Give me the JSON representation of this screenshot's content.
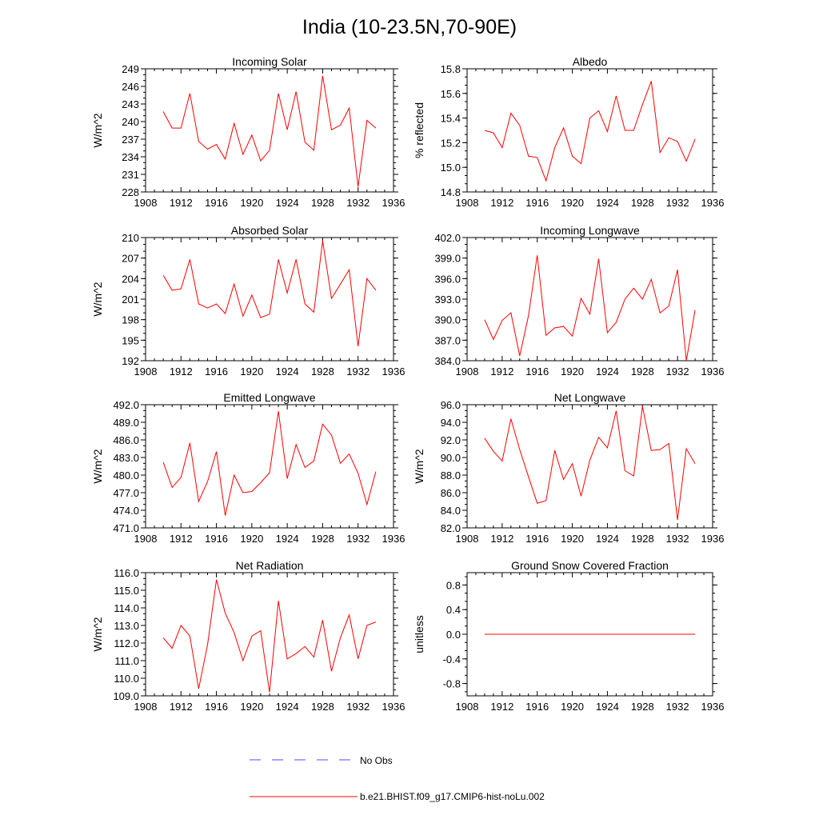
{
  "title": "India (10-23.5N,70-90E)",
  "legend": {
    "entries": [
      {
        "label": "No Obs",
        "color": "#4d4dff",
        "style": "dashed"
      },
      {
        "label": "b.e21.BHIST.f09_g17.CMIP6-hist-noLu.002",
        "color": "#ff0000",
        "style": "solid"
      }
    ]
  },
  "chart_data": [
    {
      "type": "line",
      "title": "Incoming Solar",
      "ylabel": "W/m^2",
      "xlim": [
        1908,
        1936
      ],
      "xticks": [
        "1908",
        "1912",
        "1916",
        "1920",
        "1924",
        "1928",
        "1932",
        "1936"
      ],
      "ylim": [
        228,
        249
      ],
      "yticks": [
        "228",
        "231",
        "234",
        "237",
        "240",
        "243",
        "246",
        "249"
      ],
      "x": [
        1910,
        1911,
        1912,
        1913,
        1914,
        1915,
        1916,
        1917,
        1918,
        1919,
        1920,
        1921,
        1922,
        1923,
        1924,
        1925,
        1926,
        1927,
        1928,
        1929,
        1930,
        1931,
        1932,
        1933,
        1934
      ],
      "series": [
        {
          "color": "#ff0000",
          "values": [
            241.7,
            238.9,
            238.9,
            244.8,
            236.6,
            235.3,
            236.1,
            233.6,
            239.7,
            234.4,
            237.7,
            233.3,
            235.1,
            244.8,
            238.6,
            245.1,
            236.5,
            235.1,
            247.8,
            238.6,
            239.4,
            242.3,
            228.9,
            240.2,
            238.9
          ]
        }
      ]
    },
    {
      "type": "line",
      "title": "Albedo",
      "ylabel": "% reflected",
      "xlim": [
        1908,
        1936
      ],
      "xticks": [
        "1908",
        "1912",
        "1916",
        "1920",
        "1924",
        "1928",
        "1932",
        "1936"
      ],
      "ylim": [
        14.8,
        15.8
      ],
      "yticks": [
        "14.8",
        "15.0",
        "15.2",
        "15.4",
        "15.6",
        "15.8"
      ],
      "x": [
        1910,
        1911,
        1912,
        1913,
        1914,
        1915,
        1916,
        1917,
        1918,
        1919,
        1920,
        1921,
        1922,
        1923,
        1924,
        1925,
        1926,
        1927,
        1928,
        1929,
        1930,
        1931,
        1932,
        1933,
        1934
      ],
      "series": [
        {
          "color": "#ff0000",
          "values": [
            15.3,
            15.28,
            15.16,
            15.44,
            15.34,
            15.09,
            15.08,
            14.89,
            15.16,
            15.32,
            15.09,
            15.03,
            15.4,
            15.46,
            15.29,
            15.58,
            15.3,
            15.3,
            15.51,
            15.7,
            15.12,
            15.24,
            15.21,
            15.05,
            15.23
          ]
        }
      ]
    },
    {
      "type": "line",
      "title": "Absorbed Solar",
      "ylabel": "W/m^2",
      "xlim": [
        1908,
        1936
      ],
      "xticks": [
        "1908",
        "1912",
        "1916",
        "1920",
        "1924",
        "1928",
        "1932",
        "1936"
      ],
      "ylim": [
        192,
        210
      ],
      "yticks": [
        "192",
        "195",
        "198",
        "201",
        "204",
        "207",
        "210"
      ],
      "x": [
        1910,
        1911,
        1912,
        1913,
        1914,
        1915,
        1916,
        1917,
        1918,
        1919,
        1920,
        1921,
        1922,
        1923,
        1924,
        1925,
        1926,
        1927,
        1928,
        1929,
        1930,
        1931,
        1932,
        1933,
        1934
      ],
      "series": [
        {
          "color": "#ff0000",
          "values": [
            204.5,
            202.3,
            202.5,
            206.8,
            200.3,
            199.7,
            200.3,
            198.9,
            203.2,
            198.5,
            201.6,
            198.3,
            198.8,
            206.8,
            201.9,
            206.8,
            200.3,
            199.1,
            209.5,
            201.1,
            203.2,
            205.3,
            194.1,
            204.0,
            202.3
          ]
        }
      ]
    },
    {
      "type": "line",
      "title": "Incoming Longwave",
      "ylabel": "",
      "xlim": [
        1908,
        1936
      ],
      "xticks": [
        "1908",
        "1912",
        "1916",
        "1920",
        "1924",
        "1928",
        "1932",
        "1936"
      ],
      "ylim": [
        384,
        402
      ],
      "yticks": [
        "384.0",
        "387.0",
        "390.0",
        "393.0",
        "396.0",
        "399.0",
        "402.0"
      ],
      "x": [
        1910,
        1911,
        1912,
        1913,
        1914,
        1915,
        1916,
        1917,
        1918,
        1919,
        1920,
        1921,
        1922,
        1923,
        1924,
        1925,
        1926,
        1927,
        1928,
        1929,
        1930,
        1931,
        1932,
        1933,
        1934
      ],
      "series": [
        {
          "color": "#ff0000",
          "values": [
            390.0,
            387.1,
            389.9,
            391.0,
            384.7,
            390.6,
            399.4,
            387.7,
            388.8,
            389.0,
            387.6,
            393.1,
            390.8,
            398.9,
            388.1,
            389.6,
            393.0,
            394.6,
            393.0,
            395.9,
            391.0,
            392.0,
            397.3,
            384.0,
            391.4
          ]
        }
      ]
    },
    {
      "type": "line",
      "title": "Emitted Longwave",
      "ylabel": "W/m^2",
      "xlim": [
        1908,
        1936
      ],
      "xticks": [
        "1908",
        "1912",
        "1916",
        "1920",
        "1924",
        "1928",
        "1932",
        "1936"
      ],
      "ylim": [
        471,
        492
      ],
      "yticks": [
        "471.0",
        "474.0",
        "477.0",
        "480.0",
        "483.0",
        "486.0",
        "489.0",
        "492.0"
      ],
      "x": [
        1910,
        1911,
        1912,
        1913,
        1914,
        1915,
        1916,
        1917,
        1918,
        1919,
        1920,
        1921,
        1922,
        1923,
        1924,
        1925,
        1926,
        1927,
        1928,
        1929,
        1930,
        1931,
        1932,
        1933,
        1934
      ],
      "series": [
        {
          "color": "#ff0000",
          "values": [
            482.2,
            477.9,
            479.6,
            485.5,
            475.5,
            478.9,
            484.0,
            473.1,
            480.0,
            477.0,
            477.2,
            478.7,
            480.4,
            490.9,
            479.4,
            485.2,
            481.3,
            482.4,
            488.7,
            486.8,
            482.0,
            483.6,
            480.3,
            475.0,
            480.6
          ]
        }
      ]
    },
    {
      "type": "line",
      "title": "Net Longwave",
      "ylabel": "W/m^2",
      "xlim": [
        1908,
        1936
      ],
      "xticks": [
        "1908",
        "1912",
        "1916",
        "1920",
        "1924",
        "1928",
        "1932",
        "1936"
      ],
      "ylim": [
        82,
        96
      ],
      "yticks": [
        "82.0",
        "84.0",
        "86.0",
        "88.0",
        "90.0",
        "92.0",
        "94.0",
        "96.0"
      ],
      "x": [
        1910,
        1911,
        1912,
        1913,
        1914,
        1915,
        1916,
        1917,
        1918,
        1919,
        1920,
        1921,
        1922,
        1923,
        1924,
        1925,
        1926,
        1927,
        1928,
        1929,
        1930,
        1931,
        1932,
        1933,
        1934
      ],
      "series": [
        {
          "color": "#ff0000",
          "values": [
            92.2,
            90.7,
            89.6,
            94.4,
            90.9,
            87.8,
            84.8,
            85.1,
            90.8,
            87.5,
            89.3,
            85.6,
            89.7,
            92.3,
            91.1,
            95.3,
            88.5,
            87.9,
            95.8,
            90.8,
            90.9,
            91.6,
            82.9,
            91.0,
            89.3
          ]
        }
      ]
    },
    {
      "type": "line",
      "title": "Net Radiation",
      "ylabel": "W/m^2",
      "xlim": [
        1908,
        1936
      ],
      "xticks": [
        "1908",
        "1912",
        "1916",
        "1920",
        "1924",
        "1928",
        "1932",
        "1936"
      ],
      "ylim": [
        109,
        116
      ],
      "yticks": [
        "109.0",
        "110.0",
        "111.0",
        "112.0",
        "113.0",
        "114.0",
        "115.0",
        "116.0"
      ],
      "x": [
        1910,
        1911,
        1912,
        1913,
        1914,
        1915,
        1916,
        1917,
        1918,
        1919,
        1920,
        1921,
        1922,
        1923,
        1924,
        1925,
        1926,
        1927,
        1928,
        1929,
        1930,
        1931,
        1932,
        1933,
        1934
      ],
      "series": [
        {
          "color": "#ff0000",
          "values": [
            112.3,
            111.7,
            113.0,
            112.4,
            109.4,
            111.9,
            115.6,
            113.7,
            112.6,
            111.0,
            112.4,
            112.7,
            109.2,
            114.4,
            111.1,
            111.4,
            111.8,
            111.2,
            113.3,
            110.4,
            112.3,
            113.6,
            111.1,
            113.0,
            113.2
          ]
        }
      ]
    },
    {
      "type": "line",
      "title": "Ground Snow Covered Fraction",
      "ylabel": "unitless",
      "xlim": [
        1908,
        1936
      ],
      "xticks": [
        "1908",
        "1912",
        "1916",
        "1920",
        "1924",
        "1928",
        "1932",
        "1936"
      ],
      "ylim": [
        -1.0,
        1.0
      ],
      "yticks": [
        "-0.8",
        "-0.4",
        "0.0",
        "0.4",
        "0.8"
      ],
      "x": [
        1910,
        1911,
        1912,
        1913,
        1914,
        1915,
        1916,
        1917,
        1918,
        1919,
        1920,
        1921,
        1922,
        1923,
        1924,
        1925,
        1926,
        1927,
        1928,
        1929,
        1930,
        1931,
        1932,
        1933,
        1934
      ],
      "series": [
        {
          "color": "#ff0000",
          "values": [
            0,
            0,
            0,
            0,
            0,
            0,
            0,
            0,
            0,
            0,
            0,
            0,
            0,
            0,
            0,
            0,
            0,
            0,
            0,
            0,
            0,
            0,
            0,
            0,
            0
          ]
        }
      ]
    }
  ]
}
